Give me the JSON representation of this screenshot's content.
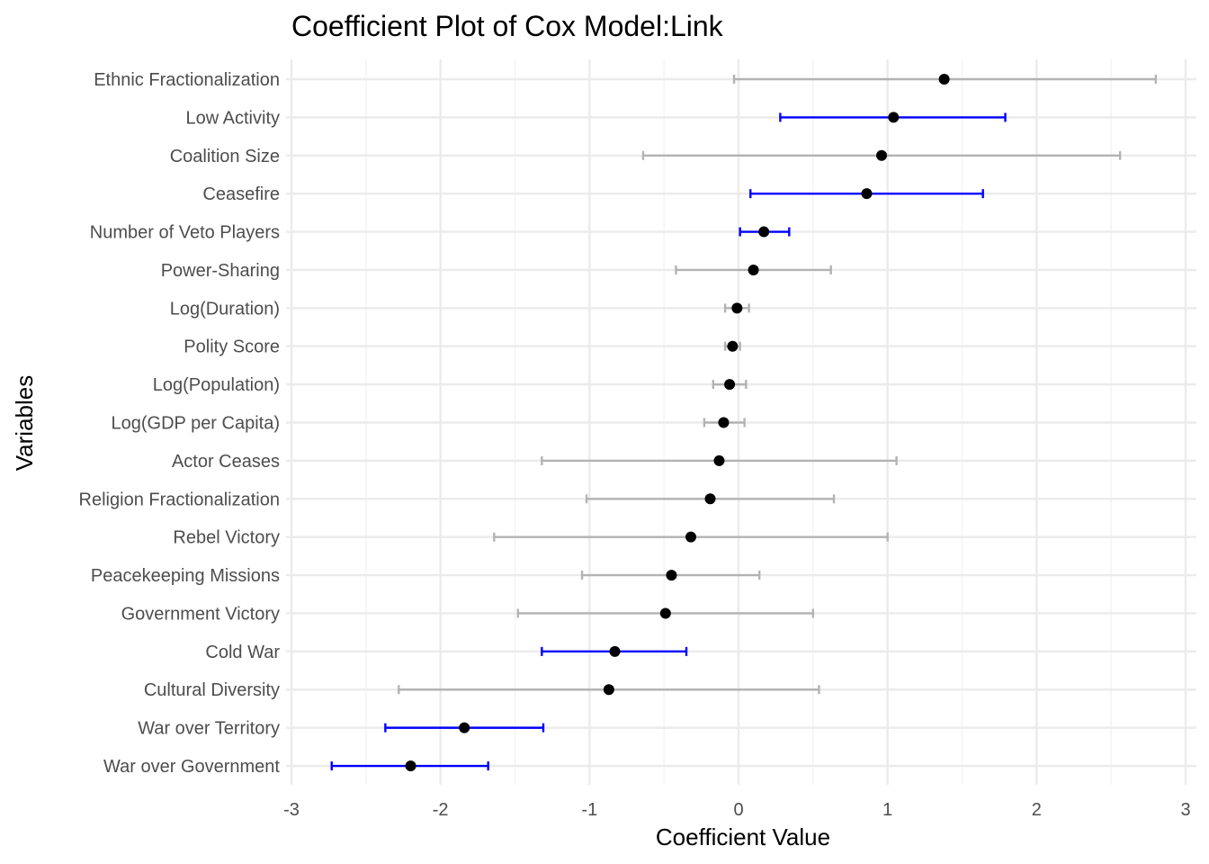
{
  "chart_data": {
    "type": "scatter",
    "subtype": "coefficient-plot",
    "title": "Coefficient Plot of Cox Model:Link",
    "xlabel": "Coefficient Value",
    "ylabel": "Variables",
    "xlim": [
      -3,
      3
    ],
    "xticks": [
      -3,
      -2,
      -1,
      0,
      1,
      2,
      3
    ],
    "grid": true,
    "colors": {
      "significant": "#0000ff",
      "not_significant": "#b3b3b3",
      "point": "#000000"
    },
    "rows": [
      {
        "variable": "Ethnic Fractionalization",
        "estimate": 1.38,
        "lower": -0.03,
        "upper": 2.8,
        "significant": false
      },
      {
        "variable": "Low Activity",
        "estimate": 1.04,
        "lower": 0.28,
        "upper": 1.79,
        "significant": true
      },
      {
        "variable": "Coalition Size",
        "estimate": 0.96,
        "lower": -0.64,
        "upper": 2.56,
        "significant": false
      },
      {
        "variable": "Ceasefire",
        "estimate": 0.86,
        "lower": 0.08,
        "upper": 1.64,
        "significant": true
      },
      {
        "variable": "Number of Veto Players",
        "estimate": 0.17,
        "lower": 0.01,
        "upper": 0.34,
        "significant": true
      },
      {
        "variable": "Power-Sharing",
        "estimate": 0.1,
        "lower": -0.42,
        "upper": 0.62,
        "significant": false
      },
      {
        "variable": "Log(Duration)",
        "estimate": -0.01,
        "lower": -0.09,
        "upper": 0.07,
        "significant": false
      },
      {
        "variable": "Polity Score",
        "estimate": -0.04,
        "lower": -0.09,
        "upper": 0.01,
        "significant": false
      },
      {
        "variable": "Log(Population)",
        "estimate": -0.06,
        "lower": -0.17,
        "upper": 0.05,
        "significant": false
      },
      {
        "variable": "Log(GDP per Capita)",
        "estimate": -0.1,
        "lower": -0.23,
        "upper": 0.04,
        "significant": false
      },
      {
        "variable": "Actor Ceases",
        "estimate": -0.13,
        "lower": -1.32,
        "upper": 1.06,
        "significant": false
      },
      {
        "variable": "Religion Fractionalization",
        "estimate": -0.19,
        "lower": -1.02,
        "upper": 0.64,
        "significant": false
      },
      {
        "variable": "Rebel Victory",
        "estimate": -0.32,
        "lower": -1.64,
        "upper": 1.0,
        "significant": false
      },
      {
        "variable": "Peacekeeping Missions",
        "estimate": -0.45,
        "lower": -1.05,
        "upper": 0.14,
        "significant": false
      },
      {
        "variable": "Government Victory",
        "estimate": -0.49,
        "lower": -1.48,
        "upper": 0.5,
        "significant": false
      },
      {
        "variable": "Cold War",
        "estimate": -0.83,
        "lower": -1.32,
        "upper": -0.35,
        "significant": true
      },
      {
        "variable": "Cultural Diversity",
        "estimate": -0.87,
        "lower": -2.28,
        "upper": 0.54,
        "significant": false
      },
      {
        "variable": "War over Territory",
        "estimate": -1.84,
        "lower": -2.37,
        "upper": -1.31,
        "significant": true
      },
      {
        "variable": "War over Government",
        "estimate": -2.2,
        "lower": -2.73,
        "upper": -1.68,
        "significant": true
      }
    ]
  }
}
